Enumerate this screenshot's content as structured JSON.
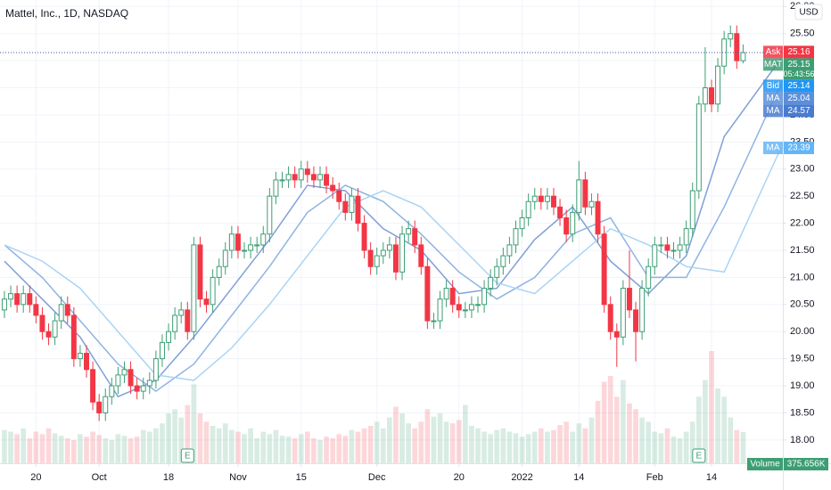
{
  "chart_data": {
    "type": "candlestick",
    "title": "Mattel, Inc., 1D, NASDAQ",
    "currency": "USD",
    "up_color": "#3d9e74",
    "down_color": "#f23645",
    "grid": true,
    "xlim": [
      -0.7,
      123.3
    ],
    "ylim": [
      17.57,
      26.12
    ],
    "yticks": [
      {
        "value": 18,
        "label": "18.00"
      },
      {
        "value": 18.5,
        "label": "18.50"
      },
      {
        "value": 19,
        "label": "19.00"
      },
      {
        "value": 19.5,
        "label": "19.50"
      },
      {
        "value": 20,
        "label": "20.00"
      },
      {
        "value": 20.5,
        "label": "20.50"
      },
      {
        "value": 21,
        "label": "21.00"
      },
      {
        "value": 21.5,
        "label": "21.50"
      },
      {
        "value": 22,
        "label": "22.00"
      },
      {
        "value": 22.5,
        "label": "22.50"
      },
      {
        "value": 23,
        "label": "23.00"
      },
      {
        "value": 23.5,
        "label": "23.50"
      },
      {
        "value": 24,
        "label": "24.00"
      },
      {
        "value": 24.5,
        "label": "24.50"
      },
      {
        "value": 25,
        "label": "25.00"
      },
      {
        "value": 25.5,
        "label": "25.50"
      },
      {
        "value": 26,
        "label": "26.00"
      }
    ],
    "xticks": [
      {
        "value": 5,
        "label": "20"
      },
      {
        "value": 15,
        "label": "Oct"
      },
      {
        "value": 26,
        "label": "18"
      },
      {
        "value": 37,
        "label": "Nov"
      },
      {
        "value": 47,
        "label": "15"
      },
      {
        "value": 59,
        "label": "Dec"
      },
      {
        "value": 72,
        "label": "20"
      },
      {
        "value": 82,
        "label": "2022"
      },
      {
        "value": 91,
        "label": "14"
      },
      {
        "value": 103,
        "label": "Feb"
      },
      {
        "value": 112,
        "label": "14"
      }
    ],
    "candles": [
      [
        20.4,
        20.75,
        20.25,
        20.6
      ],
      [
        20.6,
        20.85,
        20.45,
        20.7
      ],
      [
        20.7,
        20.85,
        20.35,
        20.5
      ],
      [
        20.5,
        20.85,
        20.35,
        20.7
      ],
      [
        20.7,
        20.85,
        20.35,
        20.5
      ],
      [
        20.5,
        20.65,
        20.15,
        20.3
      ],
      [
        20.3,
        20.45,
        19.85,
        20.0
      ],
      [
        20.0,
        20.15,
        19.75,
        19.9
      ],
      [
        19.9,
        20.35,
        19.75,
        20.2
      ],
      [
        20.2,
        20.65,
        20.05,
        20.5
      ],
      [
        20.5,
        20.65,
        20.15,
        20.3
      ],
      [
        20.3,
        20.45,
        19.35,
        19.5
      ],
      [
        19.5,
        19.75,
        19.35,
        19.6
      ],
      [
        19.6,
        19.75,
        19.15,
        19.3
      ],
      [
        19.3,
        19.45,
        18.55,
        18.7
      ],
      [
        18.7,
        18.85,
        18.35,
        18.5
      ],
      [
        18.5,
        18.95,
        18.35,
        18.8
      ],
      [
        18.8,
        19.15,
        18.65,
        19.0
      ],
      [
        19.0,
        19.35,
        18.85,
        19.2
      ],
      [
        19.2,
        19.45,
        19.05,
        19.3
      ],
      [
        19.3,
        19.45,
        18.85,
        19.0
      ],
      [
        19.0,
        19.15,
        18.75,
        18.9
      ],
      [
        18.9,
        19.15,
        18.75,
        19.0
      ],
      [
        19.0,
        19.25,
        18.85,
        19.1
      ],
      [
        19.1,
        19.65,
        18.95,
        19.5
      ],
      [
        19.5,
        19.95,
        19.35,
        19.8
      ],
      [
        19.8,
        20.15,
        19.65,
        20.0
      ],
      [
        20.0,
        20.45,
        19.85,
        20.3
      ],
      [
        20.3,
        20.55,
        20.15,
        20.4
      ],
      [
        20.4,
        20.55,
        19.85,
        20.0
      ],
      [
        20.0,
        21.75,
        19.85,
        21.6
      ],
      [
        21.6,
        21.75,
        20.45,
        20.6
      ],
      [
        20.6,
        20.75,
        20.35,
        20.5
      ],
      [
        20.5,
        21.15,
        20.35,
        21.0
      ],
      [
        21.0,
        21.35,
        20.85,
        21.2
      ],
      [
        21.2,
        21.65,
        21.05,
        21.5
      ],
      [
        21.5,
        21.95,
        21.35,
        21.8
      ],
      [
        21.8,
        21.95,
        21.35,
        21.5
      ],
      [
        21.5,
        21.65,
        21.35,
        21.5
      ],
      [
        21.5,
        21.75,
        21.35,
        21.6
      ],
      [
        21.6,
        21.75,
        21.45,
        21.6
      ],
      [
        21.6,
        21.95,
        21.45,
        21.8
      ],
      [
        21.8,
        22.65,
        21.65,
        22.5
      ],
      [
        22.5,
        22.95,
        22.35,
        22.8
      ],
      [
        22.8,
        22.95,
        22.65,
        22.8
      ],
      [
        22.8,
        23.05,
        22.65,
        22.9
      ],
      [
        22.9,
        23.05,
        22.65,
        22.8
      ],
      [
        22.8,
        23.15,
        22.65,
        23.0
      ],
      [
        23.0,
        23.15,
        22.75,
        22.9
      ],
      [
        22.9,
        23.05,
        22.65,
        22.8
      ],
      [
        22.8,
        23.05,
        22.65,
        22.9
      ],
      [
        22.9,
        23.05,
        22.55,
        22.7
      ],
      [
        22.7,
        22.85,
        22.45,
        22.6
      ],
      [
        22.6,
        22.75,
        22.25,
        22.4
      ],
      [
        22.4,
        22.55,
        22.05,
        22.2
      ],
      [
        22.2,
        22.65,
        22.05,
        22.5
      ],
      [
        22.5,
        22.65,
        21.85,
        22.0
      ],
      [
        22.0,
        22.15,
        21.35,
        21.5
      ],
      [
        21.5,
        21.65,
        21.05,
        21.2
      ],
      [
        21.2,
        21.55,
        21.05,
        21.4
      ],
      [
        21.4,
        21.65,
        21.25,
        21.5
      ],
      [
        21.5,
        21.75,
        21.35,
        21.6
      ],
      [
        21.6,
        21.75,
        20.95,
        21.1
      ],
      [
        21.1,
        21.95,
        20.95,
        21.8
      ],
      [
        21.8,
        22.05,
        21.65,
        21.9
      ],
      [
        21.9,
        22.05,
        21.45,
        21.6
      ],
      [
        21.6,
        21.75,
        21.05,
        21.2
      ],
      [
        21.2,
        21.35,
        20.05,
        20.2
      ],
      [
        20.2,
        20.35,
        20.05,
        20.2
      ],
      [
        20.2,
        20.75,
        20.05,
        20.6
      ],
      [
        20.6,
        20.95,
        20.45,
        20.8
      ],
      [
        20.8,
        20.95,
        20.35,
        20.5
      ],
      [
        20.5,
        20.65,
        20.25,
        20.4
      ],
      [
        20.4,
        20.55,
        20.25,
        20.4
      ],
      [
        20.4,
        20.65,
        20.25,
        20.5
      ],
      [
        20.5,
        20.65,
        20.35,
        20.5
      ],
      [
        20.5,
        20.95,
        20.35,
        20.8
      ],
      [
        20.8,
        21.15,
        20.65,
        21.0
      ],
      [
        21.0,
        21.35,
        20.85,
        21.2
      ],
      [
        21.2,
        21.55,
        21.05,
        21.4
      ],
      [
        21.4,
        21.75,
        21.25,
        21.6
      ],
      [
        21.6,
        22.05,
        21.45,
        21.9
      ],
      [
        21.9,
        22.25,
        21.75,
        22.1
      ],
      [
        22.1,
        22.55,
        21.95,
        22.4
      ],
      [
        22.4,
        22.65,
        22.25,
        22.5
      ],
      [
        22.5,
        22.65,
        22.25,
        22.4
      ],
      [
        22.4,
        22.65,
        22.25,
        22.5
      ],
      [
        22.5,
        22.65,
        22.15,
        22.3
      ],
      [
        22.3,
        22.45,
        21.95,
        22.1
      ],
      [
        22.1,
        22.25,
        21.65,
        21.8
      ],
      [
        21.8,
        22.35,
        21.65,
        22.2
      ],
      [
        22.2,
        23.15,
        22.05,
        22.8
      ],
      [
        22.8,
        22.95,
        22.15,
        22.3
      ],
      [
        22.3,
        22.55,
        22.15,
        22.4
      ],
      [
        22.4,
        22.55,
        21.65,
        21.8
      ],
      [
        21.8,
        21.95,
        20.35,
        20.5
      ],
      [
        20.5,
        20.65,
        19.85,
        20.0
      ],
      [
        20.0,
        20.15,
        19.35,
        19.9
      ],
      [
        19.9,
        20.95,
        19.75,
        20.8
      ],
      [
        20.8,
        21.5,
        20.25,
        20.4
      ],
      [
        20.4,
        20.55,
        19.45,
        20.0
      ],
      [
        20.0,
        20.95,
        19.85,
        20.8
      ],
      [
        20.8,
        21.35,
        20.65,
        21.2
      ],
      [
        21.2,
        21.75,
        21.05,
        21.6
      ],
      [
        21.6,
        21.75,
        21.45,
        21.6
      ],
      [
        21.6,
        21.75,
        21.35,
        21.5
      ],
      [
        21.5,
        21.65,
        21.35,
        21.5
      ],
      [
        21.5,
        21.75,
        21.35,
        21.6
      ],
      [
        21.6,
        22.05,
        21.45,
        21.9
      ],
      [
        21.9,
        22.75,
        21.75,
        22.6
      ],
      [
        22.6,
        24.35,
        22.45,
        24.2
      ],
      [
        24.2,
        25.25,
        24.05,
        24.5
      ],
      [
        24.5,
        24.65,
        24.05,
        24.2
      ],
      [
        24.2,
        25.05,
        24.05,
        24.9
      ],
      [
        24.9,
        25.55,
        24.75,
        25.4
      ],
      [
        25.4,
        25.65,
        25.25,
        25.5
      ],
      [
        25.5,
        25.65,
        24.85,
        25.0
      ],
      [
        25.0,
        25.3,
        24.95,
        25.15
      ]
    ],
    "volume": {
      "name": "Volume",
      "vlim": [
        0,
        1500000
      ],
      "values": [
        400000,
        380000,
        350000,
        420000,
        300000,
        380000,
        350000,
        420000,
        360000,
        330000,
        300000,
        280000,
        350000,
        320000,
        380000,
        340000,
        300000,
        280000,
        350000,
        330000,
        300000,
        320000,
        400000,
        380000,
        420000,
        480000,
        600000,
        650000,
        550000,
        700000,
        950000,
        600000,
        500000,
        450000,
        420000,
        480000,
        400000,
        380000,
        350000,
        420000,
        300000,
        380000,
        350000,
        400000,
        330000,
        320000,
        300000,
        350000,
        380000,
        300000,
        280000,
        320000,
        300000,
        350000,
        330000,
        400000,
        380000,
        420000,
        450000,
        500000,
        420000,
        550000,
        680000,
        600000,
        480000,
        420000,
        500000,
        650000,
        560000,
        600000,
        500000,
        480000,
        520000,
        700000,
        450000,
        420000,
        380000,
        350000,
        400000,
        420000,
        380000,
        360000,
        320000,
        350000,
        380000,
        420000,
        380000,
        400000,
        460000,
        500000,
        380000,
        480000,
        420000,
        550000,
        750000,
        980000,
        1050000,
        800000,
        1000000,
        720000,
        650000,
        550000,
        500000,
        380000,
        360000,
        420000,
        320000,
        300000,
        380000,
        500000,
        800000,
        1000000,
        1350000,
        900000,
        800000,
        550000,
        400000,
        375656
      ],
      "value_labels": [
        null,
        null,
        null,
        null,
        null,
        null,
        null,
        null,
        null,
        null,
        null,
        null,
        null,
        null,
        null,
        null,
        null,
        null,
        null,
        null,
        null,
        null,
        null,
        null,
        null,
        null,
        null,
        null,
        null,
        null,
        null,
        null,
        null,
        null,
        null,
        null,
        null,
        null,
        null,
        null,
        null,
        null,
        null,
        null,
        null,
        null,
        null,
        null,
        null,
        null,
        null,
        null,
        null,
        null,
        null,
        null,
        null,
        null,
        null,
        null,
        null,
        null,
        null,
        null,
        null,
        null,
        null,
        null,
        null,
        null,
        null,
        null,
        null,
        null,
        null,
        null,
        null,
        null,
        null,
        null,
        null,
        null,
        null,
        null,
        null,
        null,
        null,
        null,
        null,
        null,
        null,
        null,
        null,
        null,
        null,
        null,
        null,
        null,
        null,
        null,
        null,
        null,
        null,
        null,
        null,
        null,
        null,
        null,
        null,
        null,
        null,
        null,
        null,
        null,
        null,
        null,
        null,
        "375.656K"
      ]
    },
    "moving_averages": [
      {
        "color": "#7e9fd8",
        "x": [
          0,
          6,
          12,
          18,
          24,
          30,
          36,
          42,
          48,
          54,
          60,
          66,
          72,
          78,
          84,
          90,
          96,
          102,
          108,
          114,
          123
        ],
        "values": [
          21.3,
          20.6,
          19.9,
          18.8,
          19.1,
          19.9,
          20.8,
          21.7,
          22.7,
          22.6,
          21.9,
          21.5,
          20.7,
          20.8,
          21.7,
          22.3,
          21.3,
          20.7,
          21.4,
          23.6,
          25.04
        ]
      },
      {
        "color": "#8fb3e3",
        "x": [
          0,
          6,
          12,
          18,
          24,
          30,
          36,
          42,
          48,
          54,
          60,
          66,
          72,
          78,
          84,
          90,
          96,
          102,
          108,
          114,
          123
        ],
        "values": [
          21.6,
          21.0,
          20.2,
          19.4,
          18.9,
          19.4,
          20.3,
          21.2,
          22.2,
          22.7,
          22.4,
          21.8,
          21.1,
          20.6,
          21.0,
          21.8,
          22.1,
          21.0,
          21.0,
          22.3,
          24.57
        ]
      },
      {
        "color": "#a9d4f5",
        "x": [
          0,
          6,
          12,
          18,
          24,
          30,
          36,
          42,
          48,
          54,
          60,
          66,
          72,
          78,
          84,
          90,
          96,
          102,
          108,
          114,
          123
        ],
        "values": [
          21.6,
          21.3,
          20.8,
          20.0,
          19.2,
          19.1,
          19.7,
          20.5,
          21.4,
          22.3,
          22.6,
          22.3,
          21.6,
          20.9,
          20.7,
          21.3,
          21.9,
          21.6,
          21.2,
          21.1,
          23.39
        ]
      }
    ],
    "last_price": 25.15,
    "price_tags": [
      {
        "label": "Ask",
        "value": 25.16,
        "color": "#f23645"
      },
      {
        "label": "MAT",
        "value": 25.15,
        "color": "#3d9e74",
        "countdown": "05:43:56"
      },
      {
        "label": "Bid",
        "value": 25.14,
        "color": "#2196f3"
      },
      {
        "label": "MA",
        "value": 25.04,
        "color": "#5b8fd9"
      },
      {
        "label": "MA",
        "value": 24.57,
        "color": "#4a7bd0"
      },
      {
        "label": "MA",
        "value": 23.39,
        "color": "#64b5f6"
      }
    ],
    "earnings": [
      {
        "x": 29,
        "label": "E"
      },
      {
        "x": 110,
        "label": "E"
      }
    ]
  }
}
